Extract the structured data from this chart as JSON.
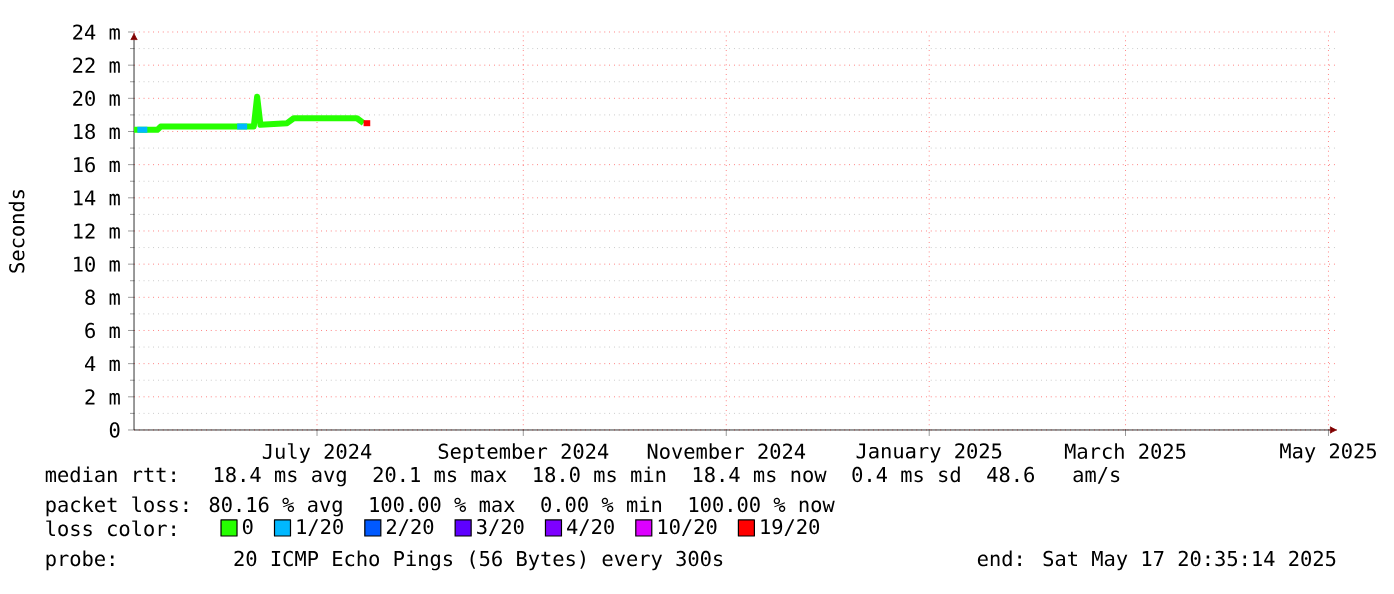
{
  "chart_data": {
    "type": "line",
    "ylabel": "Seconds",
    "xlim": [
      "2024-05-21",
      "2025-05-17T20:35"
    ],
    "xticks": [
      {
        "value": "2024-07-15",
        "label": "July 2024"
      },
      {
        "value": "2024-09-15",
        "label": "September 2024"
      },
      {
        "value": "2024-11-15",
        "label": "November 2024"
      },
      {
        "value": "2025-01-15",
        "label": "January 2025"
      },
      {
        "value": "2025-03-15",
        "label": "March 2025"
      },
      {
        "value": "2025-05-15",
        "label": "May 2025"
      }
    ],
    "ylim": [
      0,
      24
    ],
    "yticks": [
      0,
      {
        "value": 2,
        "label": "2 m"
      },
      {
        "value": 4,
        "label": "4 m"
      },
      {
        "value": 6,
        "label": "6 m"
      },
      {
        "value": 8,
        "label": "8 m"
      },
      {
        "value": 10,
        "label": "10 m"
      },
      {
        "value": 12,
        "label": "12 m"
      },
      {
        "value": 14,
        "label": "14 m"
      },
      {
        "value": 16,
        "label": "16 m"
      },
      {
        "value": 18,
        "label": "18 m"
      },
      {
        "value": 20,
        "label": "20 m"
      },
      {
        "value": 22,
        "label": "22 m"
      },
      {
        "value": 24,
        "label": "24 m"
      }
    ],
    "grid": true,
    "legend": "bottom",
    "marker": "none",
    "series": [
      {
        "name": "0",
        "color": "#26ff00",
        "x": [
          "2024-05-21",
          "2024-05-28",
          "2024-05-29",
          "2024-06-26",
          "2024-06-27",
          "2024-06-28",
          "2024-07-06",
          "2024-07-08",
          "2024-07-27",
          "2024-07-29"
        ],
        "values": [
          18.1,
          18.1,
          18.3,
          18.3,
          20.1,
          18.4,
          18.5,
          18.8,
          18.8,
          18.5
        ]
      },
      {
        "name": "1/20",
        "color": "#00b8ff",
        "x": [
          "2024-05-22",
          "2024-05-25",
          "2024-06-04",
          "2024-06-21",
          "2024-06-24"
        ],
        "values": [
          18.1,
          18.1,
          null,
          18.3,
          18.3
        ]
      },
      {
        "name": "2/20",
        "color": "#0059ff"
      },
      {
        "name": "3/20",
        "color": "#5e00ff"
      },
      {
        "name": "4/20",
        "color": "#7e00ff"
      },
      {
        "name": "10/20",
        "color": "#dd00ff"
      },
      {
        "name": "19/20",
        "color": "#ff0000",
        "x": [
          "2024-07-29",
          "2024-07-31"
        ],
        "values": [
          18.5,
          18.5
        ]
      }
    ],
    "annotations": [
      "median rtt:  18.4 ms avg  20.1 ms max  18.0 ms min  18.4 ms now  0.4 ms sd  48.6   am/s",
      "packet loss: 80.16 % avg  100.00 % max  0.00 % min  100.00 % now",
      "loss color:",
      "probe:       20 ICMP Echo Pings (56 Bytes) every 300s",
      "end: Sat May 17 20:35:14 2025"
    ]
  }
}
